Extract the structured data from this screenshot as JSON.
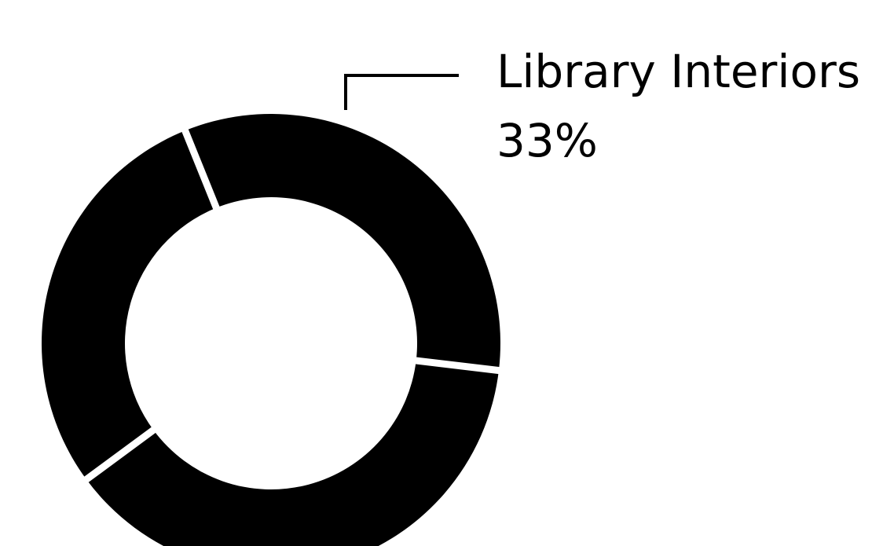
{
  "chart_data": {
    "type": "pie",
    "style": "donut",
    "slices": [
      {
        "label": "Library Interiors",
        "value": 33
      },
      {
        "value": 38
      },
      {
        "value": 29
      }
    ],
    "annotation": {
      "label": "Library Interiors",
      "value_text": "33%"
    },
    "colors": {
      "slice": "#000000",
      "separator": "#ffffff",
      "background": "#ffffff"
    }
  }
}
